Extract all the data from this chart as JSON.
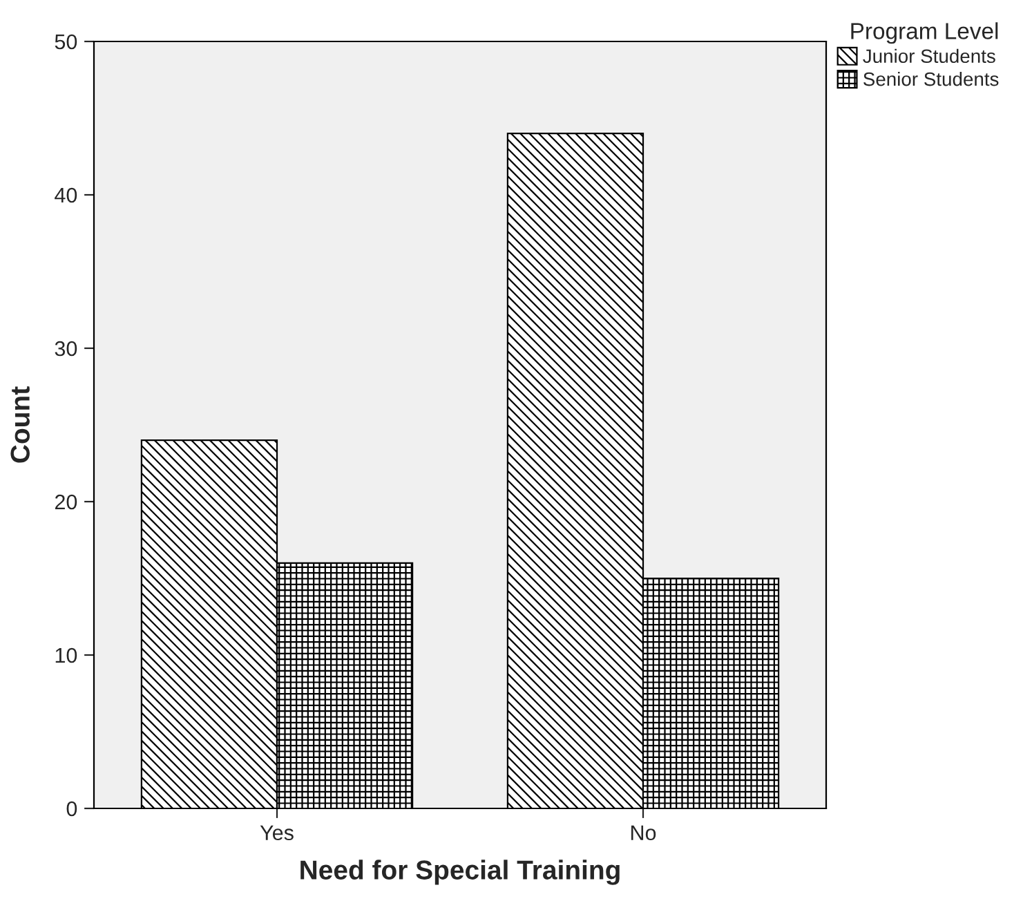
{
  "chart_data": {
    "type": "bar",
    "xlabel": "Need for Special Training",
    "ylabel": "Count",
    "legend_title": "Program Level",
    "categories": [
      "Yes",
      "No"
    ],
    "series": [
      {
        "name": "Junior Students",
        "color": "#000000",
        "values": [
          24,
          44
        ]
      },
      {
        "name": "Senior Students",
        "color": "#000000",
        "values": [
          16,
          15
        ]
      }
    ],
    "ylim": [
      0,
      50
    ],
    "yticks": [
      0,
      10,
      20,
      30,
      40,
      50
    ],
    "grid": false,
    "legend": "top right"
  }
}
